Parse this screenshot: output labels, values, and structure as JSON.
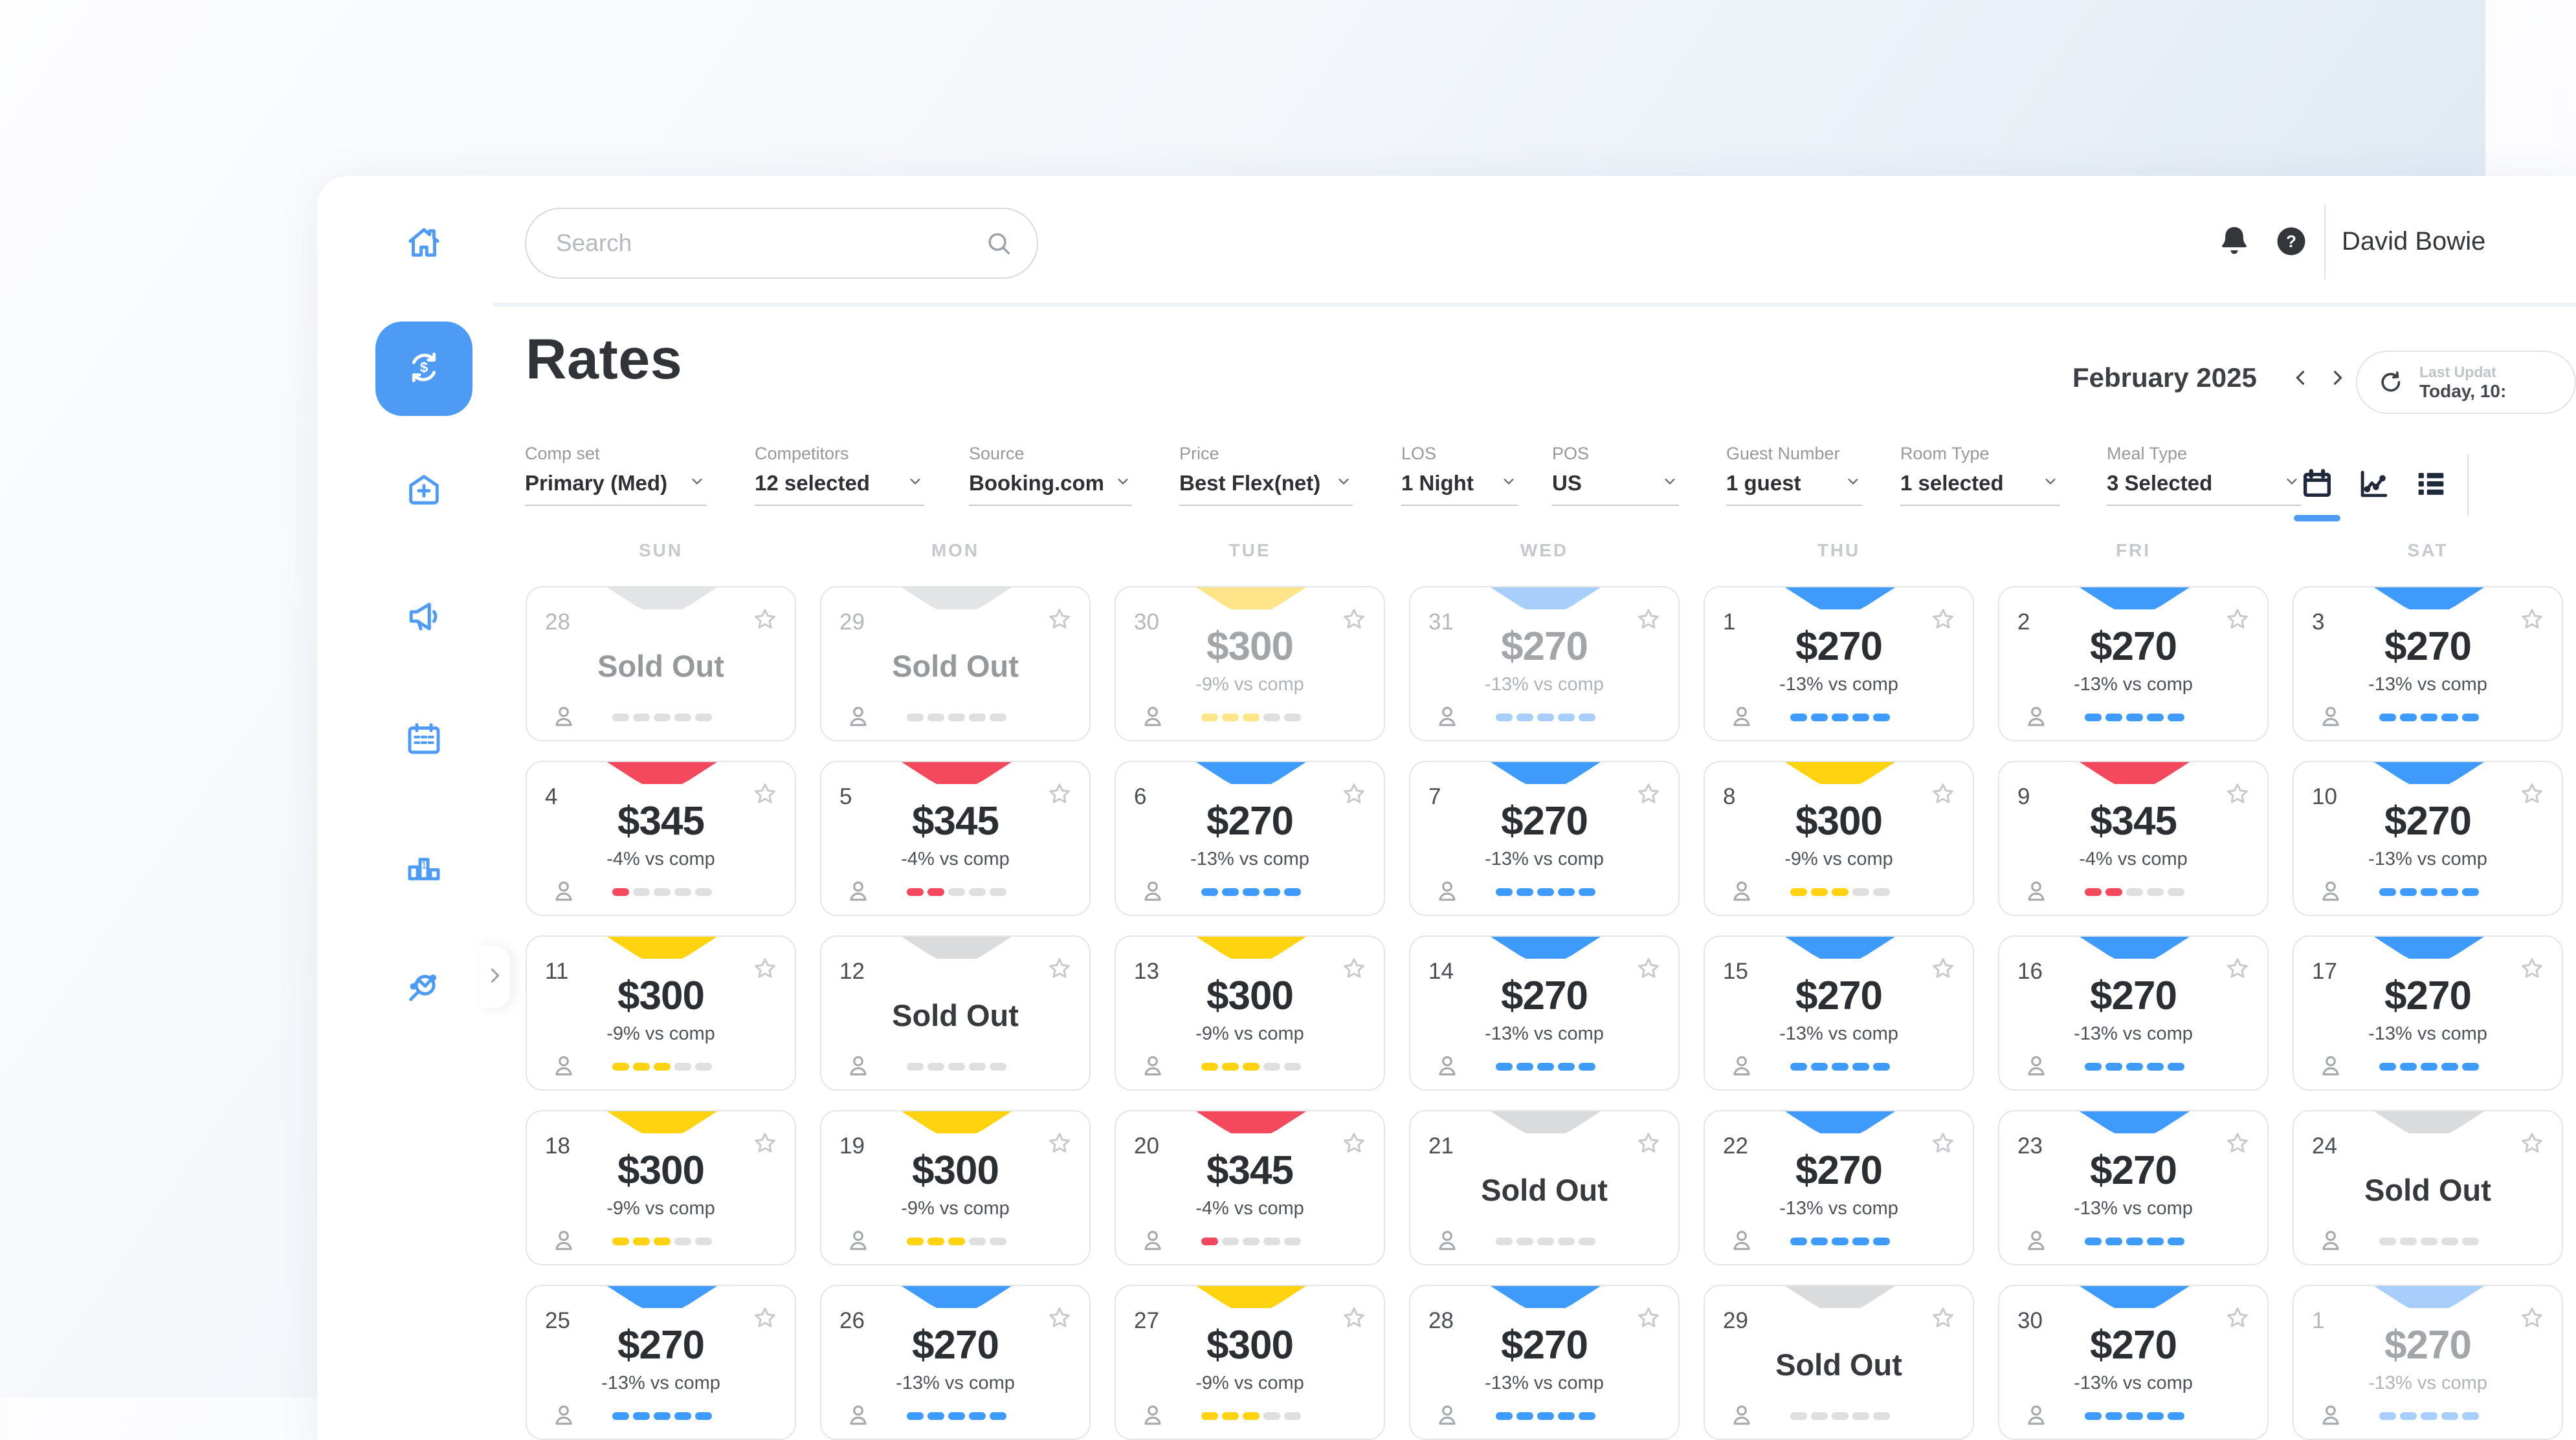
{
  "colors": {
    "accent": "#4D9BF5",
    "blue": "#3E9BFC",
    "yellow": "#FFD30F",
    "red": "#F4485C",
    "gray_tab": "#D9DBDD",
    "blue_muted": "#A8CFFC",
    "yellow_muted": "#FFE489",
    "dash_gray": "#DDDFE1"
  },
  "topbar": {
    "search_placeholder": "Search",
    "user_name": "David Bowie"
  },
  "sidebar": {
    "items": [
      {
        "name": "home",
        "icon": "home",
        "active": false
      },
      {
        "name": "rates",
        "icon": "rates",
        "active": true
      },
      {
        "name": "add-property",
        "icon": "house-plus",
        "active": false
      },
      {
        "name": "campaigns",
        "icon": "megaphone",
        "active": false
      },
      {
        "name": "calendar",
        "icon": "calendar",
        "active": false
      },
      {
        "name": "ranking",
        "icon": "podium",
        "active": false
      },
      {
        "name": "insights",
        "icon": "trend-search",
        "active": false
      }
    ]
  },
  "page": {
    "title": "Rates",
    "month_label": "February 2025",
    "last_update_label": "Last Updat",
    "last_update_value": "Today, 10:"
  },
  "filters": [
    {
      "label": "Comp set",
      "value": "Primary (Med)"
    },
    {
      "label": "Competitors",
      "value": "12 selected"
    },
    {
      "label": "Source",
      "value": "Booking.com"
    },
    {
      "label": "Price",
      "value": "Best Flex(net)"
    },
    {
      "label": "LOS",
      "value": "1 Night"
    },
    {
      "label": "POS",
      "value": "US"
    },
    {
      "label": "Guest Number",
      "value": "1 guest"
    },
    {
      "label": "Room Type",
      "value": "1 selected"
    },
    {
      "label": "Meal Type",
      "value": "3 Selected"
    }
  ],
  "view_toggle": {
    "options": [
      "calendar",
      "chart",
      "list"
    ],
    "active": "calendar"
  },
  "calendar": {
    "sold_out_label": "Sold Out",
    "day_headers": [
      "SUN",
      "MON",
      "TUE",
      "WED",
      "THU",
      "FRI",
      "SAT"
    ],
    "weeks": [
      [
        {
          "day": "28",
          "state": "past",
          "tab": "gray",
          "sold_out": true,
          "dashes": [
            "gray",
            "gray",
            "gray",
            "gray",
            "gray"
          ]
        },
        {
          "day": "29",
          "state": "past",
          "tab": "gray",
          "sold_out": true,
          "dashes": [
            "gray",
            "gray",
            "gray",
            "gray",
            "gray"
          ]
        },
        {
          "day": "30",
          "state": "past",
          "tab": "yellow",
          "price": "$300",
          "delta": "-9% vs comp",
          "dashes": [
            "yellow",
            "yellow",
            "yellow",
            "gray",
            "gray"
          ]
        },
        {
          "day": "31",
          "state": "past",
          "tab": "blue",
          "price": "$270",
          "delta": "-13% vs comp",
          "dashes": [
            "blue",
            "blue",
            "blue",
            "blue",
            "blue"
          ]
        },
        {
          "day": "1",
          "state": "current",
          "tab": "blue",
          "price": "$270",
          "delta": "-13% vs comp",
          "dashes": [
            "blue",
            "blue",
            "blue",
            "blue",
            "blue"
          ]
        },
        {
          "day": "2",
          "state": "current",
          "tab": "blue",
          "price": "$270",
          "delta": "-13% vs comp",
          "dashes": [
            "blue",
            "blue",
            "blue",
            "blue",
            "blue"
          ]
        },
        {
          "day": "3",
          "state": "current",
          "tab": "blue",
          "price": "$270",
          "delta": "-13% vs comp",
          "dashes": [
            "blue",
            "blue",
            "blue",
            "blue",
            "blue"
          ]
        }
      ],
      [
        {
          "day": "4",
          "state": "current",
          "tab": "red",
          "price": "$345",
          "delta": "-4% vs comp",
          "dashes": [
            "red",
            "gray",
            "gray",
            "gray",
            "gray"
          ]
        },
        {
          "day": "5",
          "state": "current",
          "tab": "red",
          "price": "$345",
          "delta": "-4% vs comp",
          "dashes": [
            "red",
            "red",
            "gray",
            "gray",
            "gray"
          ]
        },
        {
          "day": "6",
          "state": "current",
          "tab": "blue",
          "price": "$270",
          "delta": "-13% vs comp",
          "dashes": [
            "blue",
            "blue",
            "blue",
            "blue",
            "blue"
          ]
        },
        {
          "day": "7",
          "state": "current",
          "tab": "blue",
          "price": "$270",
          "delta": "-13% vs comp",
          "dashes": [
            "blue",
            "blue",
            "blue",
            "blue",
            "blue"
          ]
        },
        {
          "day": "8",
          "state": "current",
          "tab": "yellow",
          "price": "$300",
          "delta": "-9% vs comp",
          "dashes": [
            "yellow",
            "yellow",
            "yellow",
            "gray",
            "gray"
          ]
        },
        {
          "day": "9",
          "state": "current",
          "tab": "red",
          "price": "$345",
          "delta": "-4% vs comp",
          "dashes": [
            "red",
            "red",
            "gray",
            "gray",
            "gray"
          ]
        },
        {
          "day": "10",
          "state": "current",
          "tab": "blue",
          "price": "$270",
          "delta": "-13% vs comp",
          "dashes": [
            "blue",
            "blue",
            "blue",
            "blue",
            "blue"
          ]
        }
      ],
      [
        {
          "day": "11",
          "state": "current",
          "tab": "yellow",
          "price": "$300",
          "delta": "-9% vs comp",
          "dashes": [
            "yellow",
            "yellow",
            "yellow",
            "gray",
            "gray"
          ]
        },
        {
          "day": "12",
          "state": "current",
          "tab": "gray",
          "sold_out": true,
          "dashes": [
            "gray",
            "gray",
            "gray",
            "gray",
            "gray"
          ]
        },
        {
          "day": "13",
          "state": "current",
          "tab": "yellow",
          "price": "$300",
          "delta": "-9% vs comp",
          "dashes": [
            "yellow",
            "yellow",
            "yellow",
            "gray",
            "gray"
          ]
        },
        {
          "day": "14",
          "state": "current",
          "tab": "blue",
          "price": "$270",
          "delta": "-13% vs comp",
          "dashes": [
            "blue",
            "blue",
            "blue",
            "blue",
            "blue"
          ]
        },
        {
          "day": "15",
          "state": "current",
          "tab": "blue",
          "price": "$270",
          "delta": "-13% vs comp",
          "dashes": [
            "blue",
            "blue",
            "blue",
            "blue",
            "blue"
          ]
        },
        {
          "day": "16",
          "state": "current",
          "tab": "blue",
          "price": "$270",
          "delta": "-13% vs comp",
          "dashes": [
            "blue",
            "blue",
            "blue",
            "blue",
            "blue"
          ]
        },
        {
          "day": "17",
          "state": "current",
          "tab": "blue",
          "price": "$270",
          "delta": "-13% vs comp",
          "dashes": [
            "blue",
            "blue",
            "blue",
            "blue",
            "blue"
          ]
        }
      ],
      [
        {
          "day": "18",
          "state": "current",
          "tab": "yellow",
          "price": "$300",
          "delta": "-9% vs comp",
          "dashes": [
            "yellow",
            "yellow",
            "yellow",
            "gray",
            "gray"
          ]
        },
        {
          "day": "19",
          "state": "current",
          "tab": "yellow",
          "price": "$300",
          "delta": "-9% vs comp",
          "dashes": [
            "yellow",
            "yellow",
            "yellow",
            "gray",
            "gray"
          ]
        },
        {
          "day": "20",
          "state": "current",
          "tab": "red",
          "price": "$345",
          "delta": "-4% vs comp",
          "dashes": [
            "red",
            "gray",
            "gray",
            "gray",
            "gray"
          ]
        },
        {
          "day": "21",
          "state": "current",
          "tab": "gray",
          "sold_out": true,
          "dashes": [
            "gray",
            "gray",
            "gray",
            "gray",
            "gray"
          ]
        },
        {
          "day": "22",
          "state": "current",
          "tab": "blue",
          "price": "$270",
          "delta": "-13% vs comp",
          "dashes": [
            "blue",
            "blue",
            "blue",
            "blue",
            "blue"
          ]
        },
        {
          "day": "23",
          "state": "current",
          "tab": "blue",
          "price": "$270",
          "delta": "-13% vs comp",
          "dashes": [
            "blue",
            "blue",
            "blue",
            "blue",
            "blue"
          ]
        },
        {
          "day": "24",
          "state": "current",
          "tab": "gray",
          "sold_out": true,
          "dashes": [
            "gray",
            "gray",
            "gray",
            "gray",
            "gray"
          ]
        }
      ],
      [
        {
          "day": "25",
          "state": "current",
          "tab": "blue",
          "price": "$270",
          "delta": "-13% vs comp",
          "dashes": [
            "blue",
            "blue",
            "blue",
            "blue",
            "blue"
          ]
        },
        {
          "day": "26",
          "state": "current",
          "tab": "blue",
          "price": "$270",
          "delta": "-13% vs comp",
          "dashes": [
            "blue",
            "blue",
            "blue",
            "blue",
            "blue"
          ]
        },
        {
          "day": "27",
          "state": "current",
          "tab": "yellow",
          "price": "$300",
          "delta": "-9% vs comp",
          "dashes": [
            "yellow",
            "yellow",
            "yellow",
            "gray",
            "gray"
          ]
        },
        {
          "day": "28",
          "state": "current",
          "tab": "blue",
          "price": "$270",
          "delta": "-13% vs comp",
          "dashes": [
            "blue",
            "blue",
            "blue",
            "blue",
            "blue"
          ]
        },
        {
          "day": "29",
          "state": "current",
          "tab": "gray",
          "sold_out": true,
          "dashes": [
            "gray",
            "gray",
            "gray",
            "gray",
            "gray"
          ]
        },
        {
          "day": "30",
          "state": "current",
          "tab": "blue",
          "price": "$270",
          "delta": "-13% vs comp",
          "dashes": [
            "blue",
            "blue",
            "blue",
            "blue",
            "blue"
          ]
        },
        {
          "day": "1",
          "state": "next",
          "tab": "blue",
          "price": "$270",
          "delta": "-13% vs comp",
          "dashes": [
            "blue",
            "blue",
            "blue",
            "blue",
            "blue"
          ]
        }
      ]
    ]
  }
}
